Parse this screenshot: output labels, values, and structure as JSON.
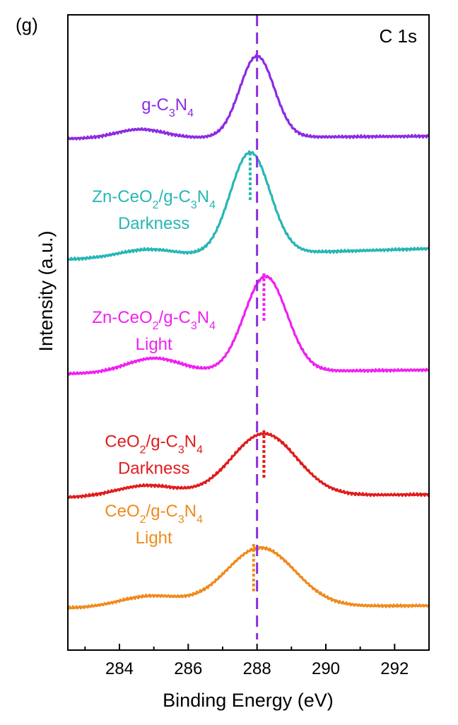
{
  "chart_data": {
    "type": "line",
    "panel_label": "(g)",
    "title": "C 1s",
    "xlabel": "Binding Energy (eV)",
    "ylabel": "Intensity (a.u.)",
    "xlim": [
      282.5,
      293
    ],
    "ylim": [
      0,
      100
    ],
    "x_ticks": [
      284,
      286,
      288,
      290,
      292
    ],
    "x_tick_labels": [
      "284",
      "286",
      "288",
      "290",
      "292"
    ],
    "x_minor_ticks": [
      283,
      285,
      287,
      289,
      291
    ],
    "reference_line": {
      "x": 288.0,
      "color": "#8c2be2",
      "style": "dashed"
    },
    "series": [
      {
        "name": "g-C3N4",
        "label_parts": [
          [
            {
              "t": "g-C"
            },
            {
              "t": "3",
              "sub": true
            },
            {
              "t": "N"
            },
            {
              "t": "4",
              "sub": true
            }
          ]
        ],
        "label_pos": [
          285.4,
          85.0
        ],
        "color": "#8c2be2",
        "baseline": 80.5,
        "shape": {
          "start": 0,
          "end": 0.4,
          "bumps": [
            [
              284.6,
              1.4,
              0.7
            ],
            [
              288.0,
              12.8,
              0.5
            ]
          ]
        },
        "peak_marker": null
      },
      {
        "name": "Zn-CeO2/g-C3N4 Darkness",
        "label_parts": [
          [
            {
              "t": "Zn-CeO"
            },
            {
              "t": "2",
              "sub": true
            },
            {
              "t": "/g-C"
            },
            {
              "t": "3",
              "sub": true
            },
            {
              "t": "N"
            },
            {
              "t": "4",
              "sub": true
            }
          ],
          [
            {
              "t": "Darkness"
            }
          ]
        ],
        "label_pos": [
          285.0,
          70.5
        ],
        "color": "#27b6b4",
        "baseline": 61.5,
        "shape": {
          "start": 0,
          "end": 1.7,
          "bumps": [
            [
              284.8,
              1.2,
              0.8
            ],
            [
              287.8,
              16.0,
              0.58
            ]
          ]
        },
        "peak_marker": 287.8
      },
      {
        "name": "Zn-CeO2/g-C3N4 Light",
        "label_parts": [
          [
            {
              "t": "Zn-CeO"
            },
            {
              "t": "2",
              "sub": true
            },
            {
              "t": "/g-C"
            },
            {
              "t": "3",
              "sub": true
            },
            {
              "t": "N"
            },
            {
              "t": "4",
              "sub": true
            }
          ],
          [
            {
              "t": "Light"
            }
          ]
        ],
        "label_pos": [
          285.0,
          51.5
        ],
        "color": "#f020f0",
        "baseline": 43.5,
        "shape": {
          "start": 0,
          "end": 0.6,
          "bumps": [
            [
              285.0,
              2.3,
              0.8
            ],
            [
              288.25,
              15.0,
              0.62
            ]
          ]
        },
        "peak_marker": 288.2
      },
      {
        "name": "CeO2/g-C3N4 Darkness",
        "label_parts": [
          [
            {
              "t": "CeO"
            },
            {
              "t": "2",
              "sub": true
            },
            {
              "t": "/g-C"
            },
            {
              "t": "3",
              "sub": true
            },
            {
              "t": "N"
            },
            {
              "t": "4",
              "sub": true
            }
          ],
          [
            {
              "t": "Darkness"
            }
          ]
        ],
        "label_pos": [
          285.0,
          32.0
        ],
        "color": "#e01c1c",
        "baseline": 24.0,
        "shape": {
          "start": 0,
          "end": 0.5,
          "bumps": [
            [
              284.8,
              1.8,
              0.9
            ],
            [
              288.2,
              9.8,
              0.95
            ]
          ]
        },
        "peak_marker": 288.2
      },
      {
        "name": "CeO2/g-C3N4 Light",
        "label_parts": [
          [
            {
              "t": "CeO"
            },
            {
              "t": "2",
              "sub": true
            },
            {
              "t": "/g-C"
            },
            {
              "t": "3",
              "sub": true
            },
            {
              "t": "N"
            },
            {
              "t": "4",
              "sub": true
            }
          ],
          [
            {
              "t": "Light"
            }
          ]
        ],
        "label_pos": [
          285.0,
          21.0
        ],
        "color": "#f08a1c",
        "baseline": 6.6,
        "shape": {
          "start": 0,
          "end": 0.4,
          "bumps": [
            [
              284.9,
              1.8,
              0.9
            ],
            [
              288.1,
              9.3,
              1.0
            ]
          ]
        },
        "peak_marker": 287.9
      }
    ]
  }
}
